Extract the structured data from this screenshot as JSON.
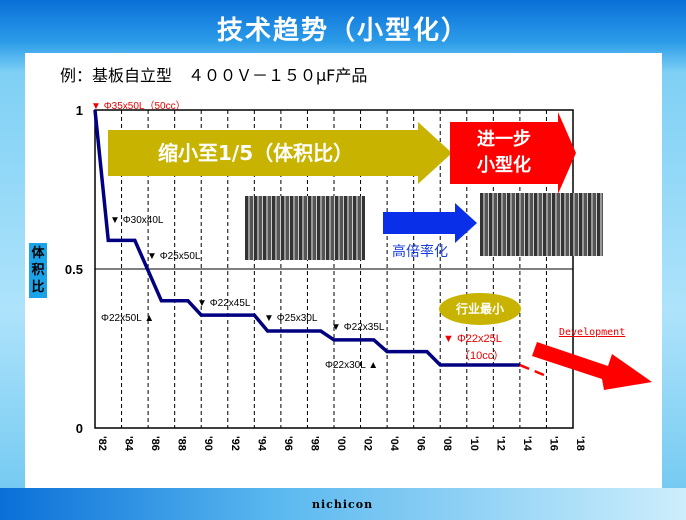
{
  "title": "技术趋势（小型化）",
  "subtitle": "例：基板自立型　４００Ｖ－１５０μF产品",
  "banner_main": "缩小至1/5（体积比）",
  "banner_next_line1": "进一步",
  "banner_next_line2": "小型化",
  "photo_arrow_label": "高倍率化",
  "industry_smallest": "行业最小",
  "development": "Development",
  "logo": "nichicon",
  "annotations": {
    "first": "Φ35x50L（50cc）",
    "a1": "Φ30x40L",
    "a2": "Φ25x50L",
    "a3": "Φ22x50L",
    "a4": "Φ22x45L",
    "a5": "Φ25x30L",
    "a6": "Φ22x35L",
    "a7": "Φ22x30L",
    "last1": "Φ22x25L",
    "last2": "（10cc）"
  },
  "chart_data": {
    "type": "line",
    "title": "技术趋势（小型化）",
    "ylabel": "体积比",
    "xlabel": "",
    "ylim": [
      0,
      1
    ],
    "xlim": [
      1982,
      2018
    ],
    "yticks": [
      0,
      0.5,
      1
    ],
    "ytick_labels": [
      "0",
      "0.5",
      "1"
    ],
    "xticks": [
      1982,
      1984,
      1986,
      1988,
      1990,
      1992,
      1994,
      1996,
      1998,
      2000,
      2002,
      2004,
      2006,
      2008,
      2010,
      2012,
      2014,
      2016,
      2018
    ],
    "xtick_labels": [
      "'82",
      "'84",
      "'86",
      "'88",
      "'90",
      "'92",
      "'94",
      "'96",
      "'98",
      "'00",
      "'02",
      "'04",
      "'06",
      "'08",
      "'10",
      "'12",
      "'14",
      "'16",
      "'18"
    ],
    "grid": "vertical dashed",
    "series": [
      {
        "name": "体积比",
        "color": "#000080",
        "x": [
          1982,
          1983,
          1985,
          1987,
          1989,
          1990,
          1994,
          1995,
          1999,
          2000,
          2003,
          2004,
          2007,
          2008,
          2014
        ],
        "y": [
          1.0,
          0.59,
          0.59,
          0.4,
          0.4,
          0.355,
          0.355,
          0.305,
          0.305,
          0.277,
          0.277,
          0.24,
          0.24,
          0.198,
          0.198
        ]
      },
      {
        "name": "Development",
        "color": "#ff0000",
        "dashed": true,
        "x": [
          2014,
          2016.2
        ],
        "y": [
          0.198,
          0.16
        ]
      }
    ]
  }
}
